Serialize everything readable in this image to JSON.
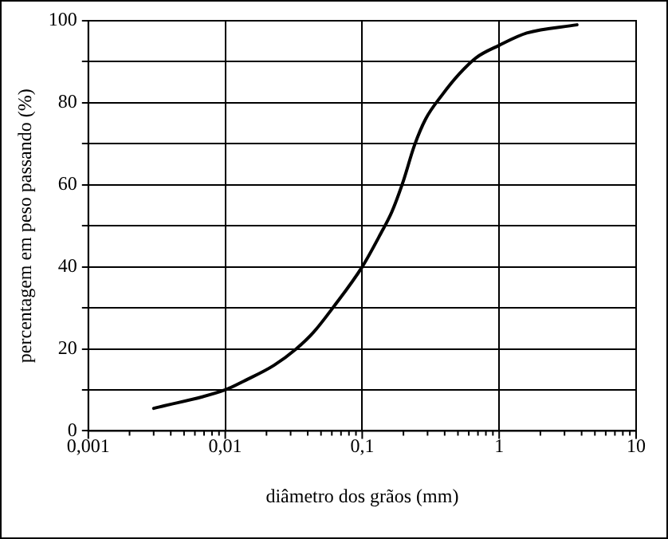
{
  "chart_data": {
    "type": "line",
    "xlabel": "diâmetro dos grãos (mm)",
    "ylabel": "percentagem em peso passando (%)",
    "log": "x",
    "x": [
      0.003,
      0.01,
      0.014,
      0.0227,
      0.033,
      0.044,
      0.061,
      0.1,
      0.136,
      0.165,
      0.2,
      0.24,
      0.29,
      0.385,
      0.51,
      0.68,
      1.0,
      1.59,
      3.7
    ],
    "series": [
      {
        "color": "#000000",
        "values": [
          5.5,
          10,
          12.3,
          16,
          20,
          24,
          30,
          40,
          48,
          53.5,
          61,
          69.5,
          76,
          82,
          87,
          91,
          94,
          97,
          99
        ]
      }
    ],
    "xlim": [
      0.001,
      10
    ],
    "xticks": [
      {
        "value": 0.001,
        "label": "0,001"
      },
      {
        "value": 0.002,
        "label": null
      },
      {
        "value": 0.003,
        "label": null
      },
      {
        "value": 0.004,
        "label": null
      },
      {
        "value": 0.005,
        "label": null
      },
      {
        "value": 0.006,
        "label": null
      },
      {
        "value": 0.007,
        "label": null
      },
      {
        "value": 0.008,
        "label": null
      },
      {
        "value": 0.009,
        "label": null
      },
      {
        "value": 0.01,
        "label": "0,01"
      },
      {
        "value": 0.02,
        "label": null
      },
      {
        "value": 0.03,
        "label": null
      },
      {
        "value": 0.04,
        "label": null
      },
      {
        "value": 0.05,
        "label": null
      },
      {
        "value": 0.06,
        "label": null
      },
      {
        "value": 0.07,
        "label": null
      },
      {
        "value": 0.08,
        "label": null
      },
      {
        "value": 0.09,
        "label": null
      },
      {
        "value": 0.1,
        "label": "0,1"
      },
      {
        "value": 0.2,
        "label": null
      },
      {
        "value": 0.3,
        "label": null
      },
      {
        "value": 0.4,
        "label": null
      },
      {
        "value": 0.5,
        "label": null
      },
      {
        "value": 0.6,
        "label": null
      },
      {
        "value": 0.7,
        "label": null
      },
      {
        "value": 0.8,
        "label": null
      },
      {
        "value": 0.9,
        "label": null
      },
      1,
      {
        "value": 2,
        "label": null
      },
      {
        "value": 3,
        "label": null
      },
      {
        "value": 4,
        "label": null
      },
      {
        "value": 5,
        "label": null
      },
      {
        "value": 6,
        "label": null
      },
      {
        "value": 7,
        "label": null
      },
      {
        "value": 8,
        "label": null
      },
      {
        "value": 9,
        "label": null
      },
      10
    ],
    "ylim": [
      0,
      100
    ],
    "yticks": [
      0,
      {
        "value": 10,
        "label": null
      },
      20,
      {
        "value": 30,
        "label": null
      },
      40,
      {
        "value": 50,
        "label": null
      },
      60,
      {
        "value": 70,
        "label": null
      },
      80,
      {
        "value": 90,
        "label": null
      },
      100
    ],
    "grid": true,
    "legend": false,
    "marker": "none",
    "line_style": "solid"
  }
}
